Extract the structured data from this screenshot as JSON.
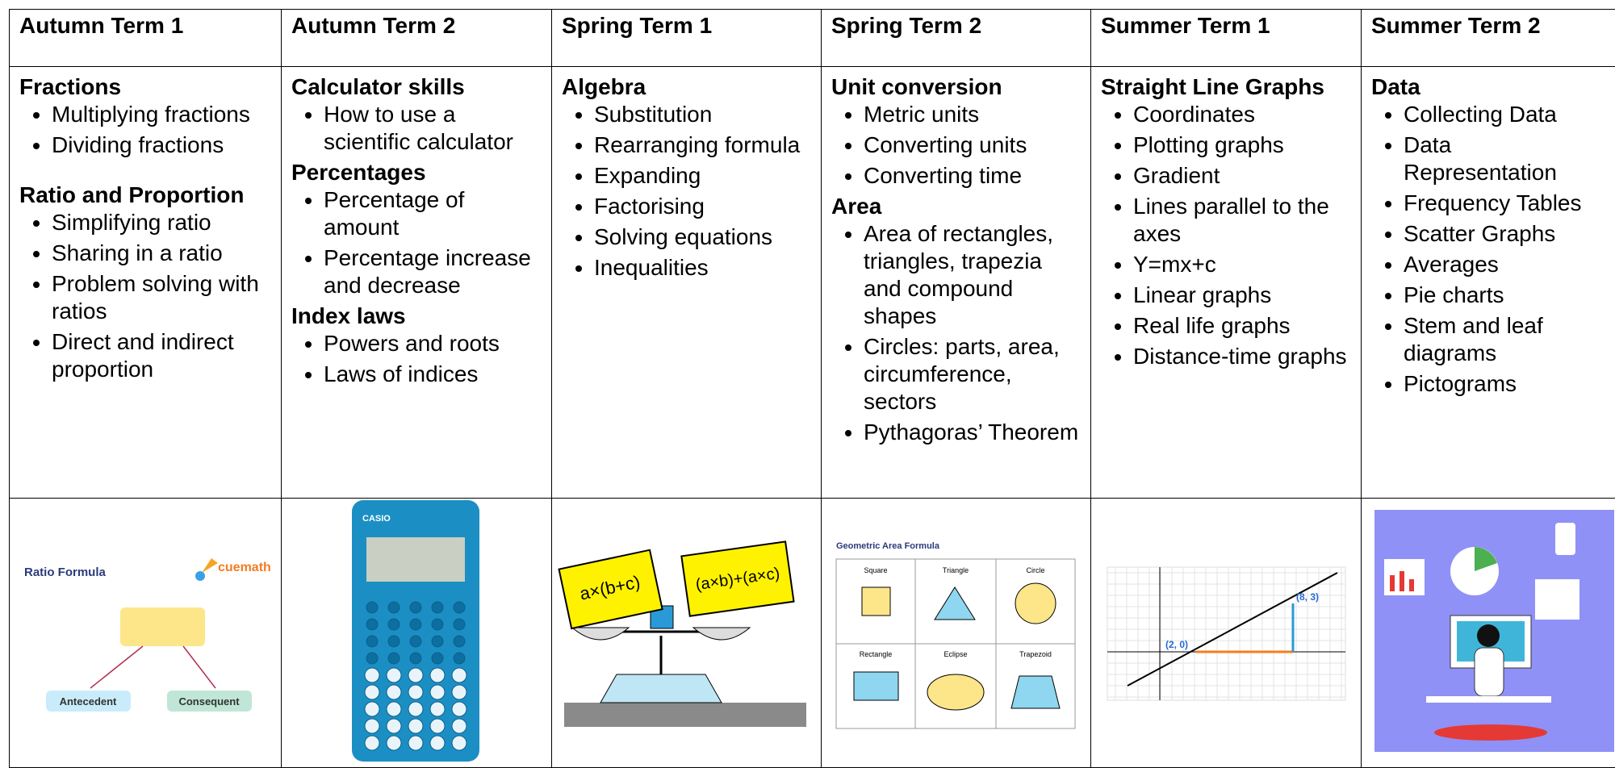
{
  "columns": [
    {
      "term": "Autumn Term 1",
      "sections": [
        {
          "heading": "Fractions",
          "items": [
            "Multiplying fractions",
            "Dividing fractions"
          ]
        },
        {
          "heading": "Ratio and Proportion",
          "items": [
            "Simplifying ratio",
            "Sharing in a ratio",
            "Problem solving with ratios",
            "Direct and indirect proportion"
          ]
        }
      ]
    },
    {
      "term": "Autumn Term 2",
      "sections": [
        {
          "heading": "Calculator skills",
          "items": [
            "How to use a scientific calculator"
          ]
        },
        {
          "heading": "Percentages",
          "items": [
            "Percentage of amount",
            "Percentage increase and decrease"
          ]
        },
        {
          "heading": "Index laws",
          "items": [
            "Powers and roots",
            "Laws of indices"
          ]
        }
      ]
    },
    {
      "term": "Spring Term 1",
      "sections": [
        {
          "heading": "Algebra",
          "items": [
            "Substitution",
            "Rearranging formula",
            "Expanding",
            "Factorising",
            "Solving equations",
            "Inequalities"
          ]
        }
      ]
    },
    {
      "term": "Spring Term 2",
      "sections": [
        {
          "heading": "Unit conversion",
          "items": [
            "Metric units",
            "Converting units",
            "Converting time"
          ]
        },
        {
          "heading": "Area",
          "items": [
            "Area of rectangles, triangles, trapezia and compound shapes",
            "Circles: parts, area, circumference, sectors",
            "Pythagoras’ Theorem"
          ]
        }
      ]
    },
    {
      "term": "Summer Term 1",
      "sections": [
        {
          "heading": "Straight Line Graphs",
          "items": [
            "Coordinates",
            "Plotting graphs",
            "Gradient",
            "Lines parallel to the axes",
            "Y=mx+c",
            "Linear graphs",
            "Real life graphs",
            "Distance-time graphs"
          ]
        }
      ]
    },
    {
      "term": "Summer Term 2",
      "sections": [
        {
          "heading": "Data",
          "items": [
            "Collecting Data",
            "Data Representation",
            "Frequency Tables",
            "Scatter Graphs",
            "Averages",
            "Pie charts",
            "Stem and leaf diagrams",
            "Pictograms"
          ]
        }
      ]
    }
  ],
  "images": [
    [
      "Ratio Formula",
      "cuemath",
      "Antecedent",
      "Consequent"
    ],
    [
      "CASIO"
    ],
    [
      "a×(b+c)",
      "(a×b)+(a×c)"
    ],
    [
      "Geometric Area Formula",
      "Square",
      "Triangle",
      "Circle",
      "Rectangle",
      "Eclipse",
      "Trapezoid"
    ],
    [
      "(2, 0)",
      "(8, 3)"
    ],
    []
  ]
}
